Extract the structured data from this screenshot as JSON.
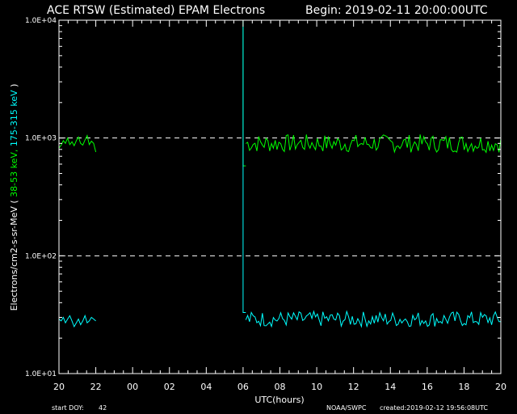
{
  "header": {
    "title": "ACE RTSW (Estimated) EPAM Electrons",
    "begin": "Begin: 2019-02-11 20:00:00UTC"
  },
  "footer": {
    "start_doy_label": "start DOY:",
    "start_doy_value": "42",
    "source": "NOAA/SWPC",
    "created": "created:2019-02-12 19:56:08UTC"
  },
  "chart_data": {
    "type": "line",
    "xlabel": "UTC(hours)",
    "ylabel_parts": [
      {
        "text": "Electrons/cm2-s-sr-MeV ( ",
        "color": "#ffffff"
      },
      {
        "text": "38-53 keV,",
        "color": "#00ff00"
      },
      {
        "text": " ",
        "color": "#ffffff"
      },
      {
        "text": "175-315 keV",
        "color": "#00ffff"
      },
      {
        "text": " )",
        "color": "#ffffff"
      }
    ],
    "y_scale": "log",
    "ylim": [
      10,
      10000
    ],
    "xlim": [
      0,
      24
    ],
    "x_tick_labels": [
      "20",
      "22",
      "00",
      "02",
      "04",
      "06",
      "08",
      "10",
      "12",
      "14",
      "16",
      "18",
      "20"
    ],
    "y_tick_labels": [
      {
        "value": 10000,
        "label": "1.0E+04"
      },
      {
        "value": 1000,
        "label": "1.0E+03"
      },
      {
        "value": 100,
        "label": "1.0E+02"
      },
      {
        "value": 10,
        "label": "1.0E+01"
      }
    ],
    "grid_lines_y": [
      1000,
      100
    ],
    "series": [
      {
        "color": "#00ff00",
        "segments": [
          {
            "x_start": 0.0,
            "x_end": 2.0,
            "base": 900,
            "jitter": 0.14,
            "values": [
              820,
              870,
              950,
              900,
              1000,
              880,
              930,
              860,
              950,
              1020,
              900,
              870,
              960,
              1050,
              880,
              940,
              900,
              760
            ]
          },
          {
            "x_start": 10.15,
            "x_end": 24.0,
            "base": 900,
            "jitter": 0.14,
            "values": []
          }
        ],
        "drop": {
          "x": 10.0,
          "from": 10000,
          "to": 580
        }
      },
      {
        "color": "#00ffff",
        "segments": [
          {
            "x_start": 0.0,
            "x_end": 2.0,
            "base": 29,
            "jitter": 0.12,
            "values": [
              29,
              28,
              30,
              27,
              29,
              31,
              28,
              25,
              27,
              29,
              26,
              28,
              31,
              27,
              28,
              30,
              29,
              28
            ]
          },
          {
            "x_start": 10.15,
            "x_end": 24.0,
            "base": 29,
            "jitter": 0.12,
            "values": []
          }
        ],
        "drop": {
          "x": 10.0,
          "from": 10000,
          "to": 33
        }
      }
    ]
  }
}
